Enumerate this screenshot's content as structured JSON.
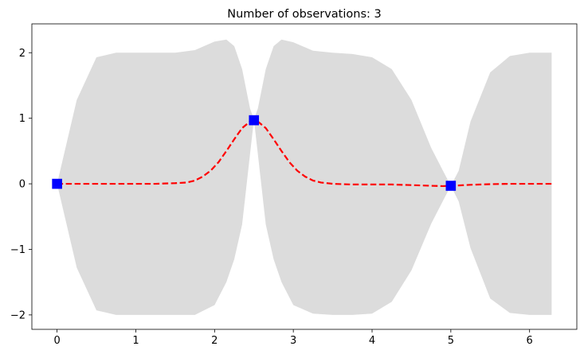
{
  "chart_data": {
    "type": "line",
    "title": "Number of observations: 3",
    "xlabel": "",
    "ylabel": "",
    "xlim": [
      -0.32,
      6.6
    ],
    "ylim": [
      -2.22,
      2.44
    ],
    "xticks": [
      0,
      1,
      2,
      3,
      4,
      5,
      6
    ],
    "yticks": [
      -2,
      -1,
      0,
      1,
      2
    ],
    "xtick_labels": [
      "0",
      "1",
      "2",
      "3",
      "4",
      "5",
      "6"
    ],
    "ytick_labels": [
      "−2",
      "−1",
      "0",
      "1",
      "2"
    ],
    "grid": false,
    "legend": "none",
    "band": {
      "x": [
        0,
        0.25,
        0.5,
        0.75,
        1.0,
        1.25,
        1.5,
        1.75,
        2.0,
        2.15,
        2.25,
        2.35,
        2.45,
        2.5,
        2.55,
        2.65,
        2.75,
        2.85,
        3.0,
        3.25,
        3.5,
        3.75,
        4.0,
        4.25,
        4.5,
        4.75,
        4.9,
        5.0,
        5.1,
        5.25,
        5.5,
        5.75,
        6.0,
        6.28
      ],
      "upper": [
        0.0,
        1.28,
        1.93,
        2.0,
        2.0,
        2.0,
        2.0,
        2.04,
        2.17,
        2.2,
        2.1,
        1.75,
        1.15,
        0.98,
        1.15,
        1.75,
        2.1,
        2.2,
        2.16,
        2.03,
        2.0,
        1.98,
        1.93,
        1.75,
        1.28,
        0.55,
        0.2,
        -0.03,
        0.2,
        0.95,
        1.7,
        1.95,
        2.0,
        2.0
      ],
      "lower": [
        0.0,
        -1.28,
        -1.93,
        -2.0,
        -2.0,
        -2.0,
        -2.0,
        -2.0,
        -1.85,
        -1.5,
        -1.15,
        -0.62,
        0.45,
        0.98,
        0.45,
        -0.62,
        -1.15,
        -1.5,
        -1.85,
        -1.98,
        -2.0,
        -2.0,
        -1.98,
        -1.8,
        -1.32,
        -0.61,
        -0.26,
        -0.03,
        -0.27,
        -0.98,
        -1.75,
        -1.97,
        -2.0,
        -2.0
      ],
      "color": "#dcdcdc"
    },
    "series": [
      {
        "x": [
          0,
          0.25,
          0.5,
          0.75,
          1.0,
          1.25,
          1.5,
          1.65,
          1.75,
          1.85,
          1.95,
          2.05,
          2.15,
          2.25,
          2.35,
          2.45,
          2.5,
          2.55,
          2.65,
          2.75,
          2.85,
          2.95,
          3.05,
          3.15,
          3.25,
          3.35,
          3.5,
          3.75,
          4.0,
          4.25,
          4.5,
          4.75,
          4.9,
          5.0,
          5.1,
          5.25,
          5.5,
          5.75,
          6.0,
          6.28
        ],
        "values": [
          0.0,
          0.0,
          0.0,
          0.0,
          0.0,
          0.0,
          0.01,
          0.02,
          0.05,
          0.11,
          0.2,
          0.33,
          0.5,
          0.68,
          0.85,
          0.95,
          0.97,
          0.95,
          0.85,
          0.68,
          0.5,
          0.33,
          0.2,
          0.11,
          0.05,
          0.02,
          0.0,
          -0.01,
          -0.01,
          -0.01,
          -0.02,
          -0.03,
          -0.035,
          -0.03,
          -0.025,
          -0.015,
          -0.005,
          0.0,
          0.0,
          0.0
        ],
        "color": "#ff0000",
        "style": "dashed"
      }
    ],
    "observations": {
      "x": [
        0,
        2.5,
        5.0
      ],
      "y": [
        0.0,
        0.97,
        -0.03
      ],
      "color": "#0000ff",
      "marker": "square"
    }
  }
}
